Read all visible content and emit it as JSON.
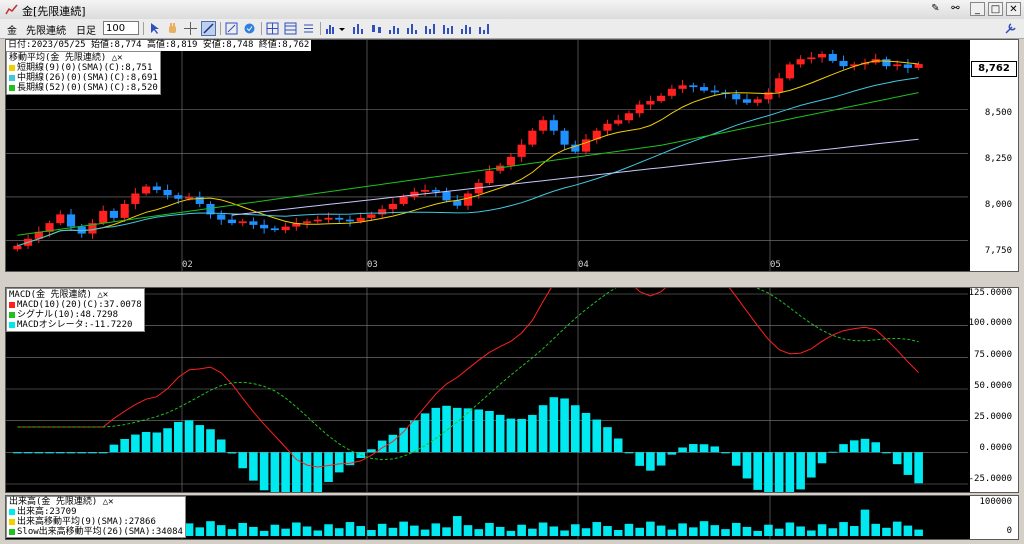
{
  "window": {
    "title": "金[先限連続]"
  },
  "toolbar": {
    "symbol": "金",
    "contract": "先限連続",
    "period": "日足",
    "count": "100"
  },
  "price_pane": {
    "info_line": "日付:2023/05/25 始値:8,774 高値:8,819 安値:8,748 終値:8,762",
    "legend_title": "移動平均(金 先限連続)",
    "legend_items": [
      {
        "text": "短期線(9)(0)(SMA)(C):8,751",
        "color": "#f0d000"
      },
      {
        "text": "中期線(26)(0)(SMA)(C):8,691",
        "color": "#40c8e0"
      },
      {
        "text": "長期線(52)(0)(SMA)(C):8,520",
        "color": "#20c020"
      }
    ],
    "current_value": "8,762",
    "y_labels": [
      "8,500",
      "8,250",
      "8,000",
      "7,750"
    ],
    "x_labels": [
      "02",
      "03",
      "04",
      "05"
    ]
  },
  "macd_pane": {
    "legend_title": "MACD(金 先限連続)",
    "legend_items": [
      {
        "text": "MACD(10)(20)(C):37.0078",
        "color": "#ff2020"
      },
      {
        "text": "シグナル(10):48.7298",
        "color": "#20c020"
      },
      {
        "text": "MACDオシレータ:-11.7220",
        "color": "#00e8f0"
      }
    ],
    "y_labels": [
      "125.0000",
      "100.0000",
      "75.0000",
      "50.0000",
      "25.0000",
      "0.0000",
      "-25.0000"
    ]
  },
  "volume_pane": {
    "legend_title": "出来高(金 先限連続)",
    "legend_items": [
      {
        "text": "出来高:23709",
        "color": "#00e8f0"
      },
      {
        "text": "出来高移動平均(9)(SMA):27866",
        "color": "#f0d000"
      },
      {
        "text": "Slow出来高移動平均(26)(SMA):34084",
        "color": "#20c020"
      }
    ],
    "y_labels": [
      "100000",
      "0"
    ]
  },
  "chart_data": {
    "type": "candlestick",
    "up_color": "#ff2020",
    "down_color": "#2090ff",
    "price_range": [
      7650,
      8900
    ],
    "x_month_labels": [
      "02",
      "03",
      "04",
      "05"
    ],
    "closes": [
      7720,
      7760,
      7800,
      7850,
      7900,
      7830,
      7790,
      7850,
      7920,
      7880,
      7960,
      8020,
      8060,
      8040,
      8010,
      7990,
      8000,
      7960,
      7900,
      7870,
      7850,
      7860,
      7840,
      7820,
      7810,
      7830,
      7850,
      7860,
      7870,
      7880,
      7870,
      7860,
      7880,
      7900,
      7930,
      7960,
      8000,
      8030,
      8040,
      8030,
      7980,
      7950,
      8020,
      8080,
      8150,
      8180,
      8230,
      8300,
      8380,
      8440,
      8380,
      8300,
      8260,
      8330,
      8380,
      8420,
      8440,
      8480,
      8530,
      8550,
      8580,
      8620,
      8640,
      8630,
      8610,
      8600,
      8590,
      8560,
      8540,
      8560,
      8600,
      8680,
      8760,
      8790,
      8800,
      8820,
      8780,
      8750,
      8760,
      8770,
      8790,
      8750,
      8760,
      8740,
      8762
    ],
    "macd": {
      "macd_last": 37.0078,
      "signal_last": 48.7298,
      "oscillator_last": -11.722,
      "range": [
        -25,
        125
      ]
    },
    "volume": {
      "last": 23709,
      "range": [
        0,
        100000
      ]
    }
  }
}
